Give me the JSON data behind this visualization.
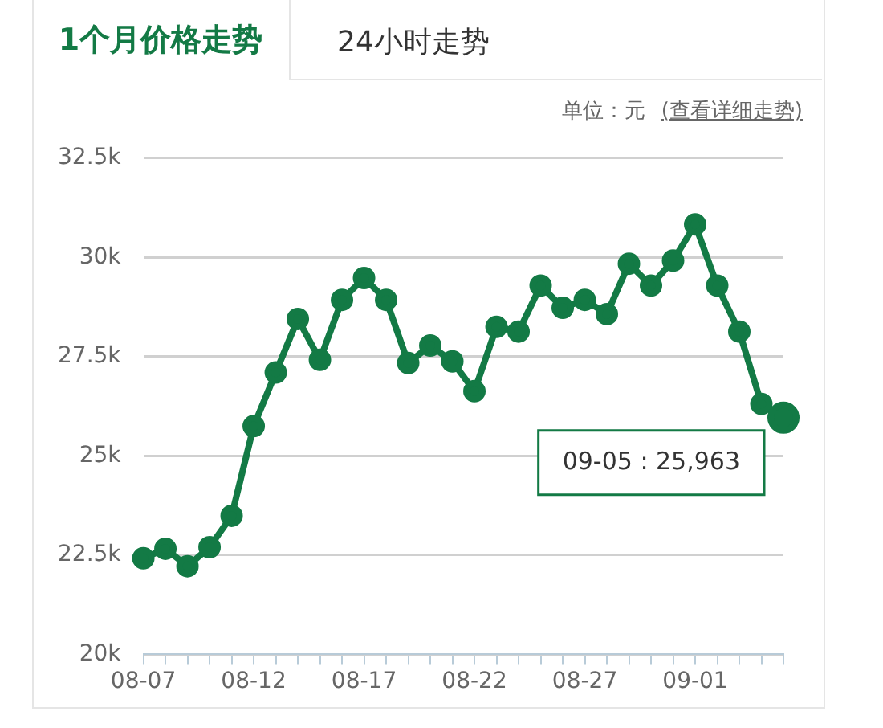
{
  "chart_data": {
    "type": "line",
    "title": "1个月价格走势",
    "subtitle": "24小时走势",
    "annotations": [
      "单位：元",
      "(查看详细走势)",
      "09-05 : 25,963"
    ],
    "categories": [
      "08-07",
      null,
      null,
      null,
      null,
      "08-12",
      null,
      null,
      null,
      null,
      "08-17",
      null,
      null,
      null,
      null,
      "08-22",
      null,
      null,
      null,
      null,
      "08-27",
      null,
      null,
      null,
      null,
      "09-01",
      null,
      null,
      null,
      null
    ],
    "series": [
      {
        "color": "#137a45",
        "values": [
          22420,
          22660,
          22220,
          22700,
          23490,
          25750,
          27100,
          28450,
          27420,
          28930,
          29480,
          28930,
          27340,
          27780,
          27380,
          26630,
          28250,
          28130,
          29290,
          28730,
          28930,
          28570,
          29840,
          29290,
          29920,
          30830,
          29290,
          28130,
          26310,
          25963
        ]
      }
    ],
    "ylim": [
      20000,
      32500
    ],
    "yticks": [
      {
        "value": 20000,
        "label": "20k"
      },
      {
        "value": 22500,
        "label": "22.5k"
      },
      {
        "value": 25000,
        "label": "25k"
      },
      {
        "value": 27500,
        "label": "27.5k"
      },
      {
        "value": 30000,
        "label": "30k"
      },
      {
        "value": 32500,
        "label": "32.5k"
      }
    ],
    "grid": "y",
    "legend": false,
    "marker": "circle",
    "line_style": "solid"
  }
}
